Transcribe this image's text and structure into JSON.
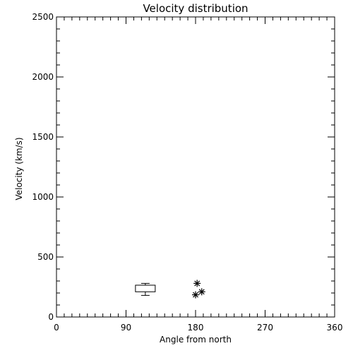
{
  "chart_data": {
    "type": "box",
    "title": "Velocity distribution",
    "xlabel": "Angle from north",
    "ylabel": "Velocity (km/s)",
    "xlim": [
      0,
      360
    ],
    "ylim": [
      0,
      2500
    ],
    "xticks": [
      0,
      90,
      180,
      270,
      360
    ],
    "yticks": [
      0,
      500,
      1000,
      1500,
      2000,
      2500
    ],
    "grid": false,
    "box": {
      "x": 115,
      "whisker_low": 180,
      "q1": 210,
      "q3": 265,
      "whisker_high": 280
    },
    "outliers": [
      {
        "x": 180,
        "y": 185
      },
      {
        "x": 182,
        "y": 280
      },
      {
        "x": 188,
        "y": 210
      }
    ]
  }
}
